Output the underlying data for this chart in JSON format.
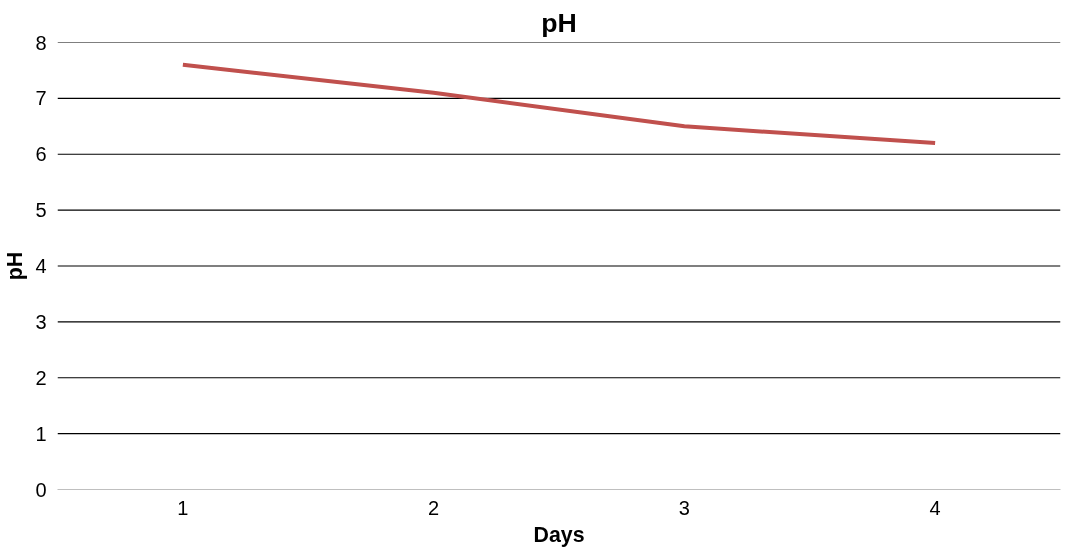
{
  "chart_data": {
    "type": "line",
    "title": "pH",
    "xlabel": "Days",
    "ylabel": "pH",
    "categories": [
      "1",
      "2",
      "3",
      "4"
    ],
    "series": [
      {
        "color": "#c0504d",
        "values": [
          7.6,
          7.1,
          6.5,
          6.2
        ]
      }
    ],
    "ylim": [
      0,
      8
    ],
    "yticks": [
      0,
      1,
      2,
      3,
      4,
      5,
      6,
      7,
      8
    ],
    "grid": "y",
    "marker": "none",
    "line_style": "solid"
  }
}
